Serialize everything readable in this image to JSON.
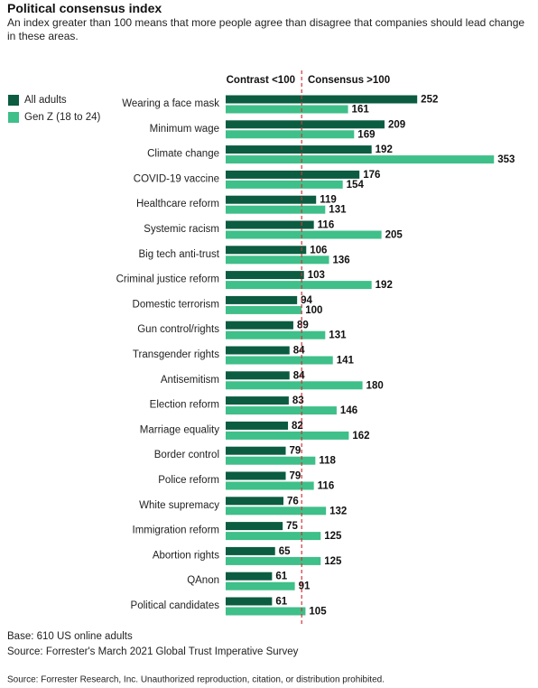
{
  "chart_data": {
    "type": "bar",
    "orientation": "horizontal",
    "title": "Political consensus index",
    "subtitle": "An index greater than 100 means that more people agree than disagree that companies should lead change in these areas.",
    "left_header": "Contrast <100",
    "right_header": "Consensus >100",
    "reference_line": 100,
    "categories": [
      "Wearing a face mask",
      "Minimum wage",
      "Climate change",
      "COVID-19 vaccine",
      "Healthcare reform",
      "Systemic racism",
      "Big tech anti-trust",
      "Criminal justice reform",
      "Domestic terrorism",
      "Gun control/rights",
      "Transgender rights",
      "Antisemitism",
      "Election reform",
      "Marriage equality",
      "Border control",
      "Police reform",
      "White supremacy",
      "Immigration reform",
      "Abortion rights",
      "QAnon",
      "Political candidates"
    ],
    "series": [
      {
        "name": "All adults",
        "color": "#0b5c41",
        "values": [
          252,
          209,
          192,
          176,
          119,
          116,
          106,
          103,
          94,
          89,
          84,
          84,
          83,
          82,
          79,
          79,
          76,
          75,
          65,
          61,
          61
        ]
      },
      {
        "name": "Gen Z (18 to 24)",
        "color": "#3fbf89",
        "values": [
          161,
          169,
          353,
          154,
          131,
          205,
          136,
          192,
          100,
          131,
          141,
          180,
          146,
          162,
          118,
          116,
          132,
          125,
          125,
          91,
          105
        ]
      }
    ],
    "reference_color": "#d0343a",
    "notes": [
      "Base: 610 US online adults",
      "Source: Forrester's March 2021 Global Trust Imperative Survey"
    ],
    "footer": "Source: Forrester Research, Inc. Unauthorized reproduction, citation, or distribution prohibited."
  }
}
